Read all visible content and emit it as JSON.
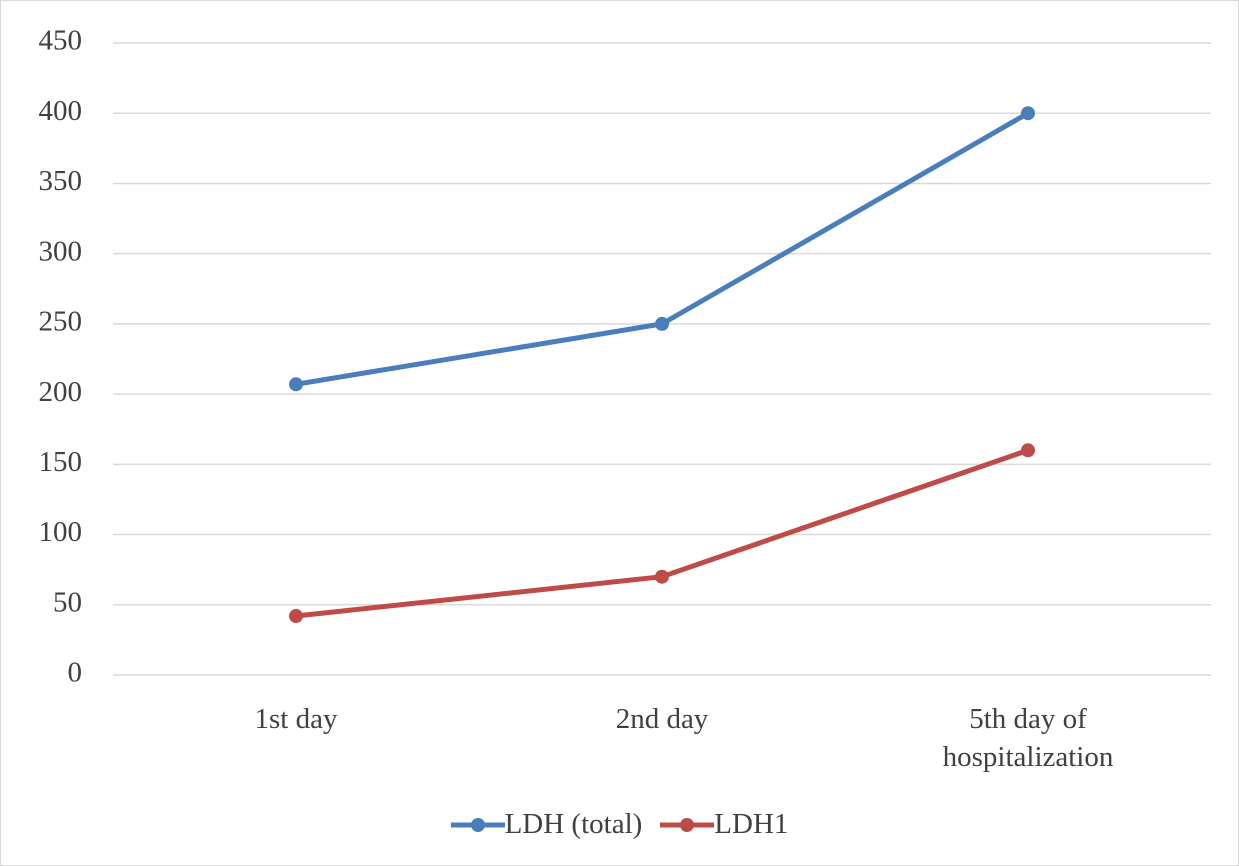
{
  "chart_data": {
    "type": "line",
    "categories": [
      "1st day",
      "2nd day",
      "5th day of hospitalization"
    ],
    "series": [
      {
        "name": "LDH (total)",
        "color": "#4a7ebb",
        "values": [
          207,
          250,
          400
        ]
      },
      {
        "name": "LDH1",
        "color": "#be4b48",
        "values": [
          42,
          70,
          160
        ]
      }
    ],
    "ylim": [
      0,
      450
    ],
    "yticks": [
      0,
      50,
      100,
      150,
      200,
      250,
      300,
      350,
      400,
      450
    ],
    "grid": true,
    "legend": "bottom"
  }
}
